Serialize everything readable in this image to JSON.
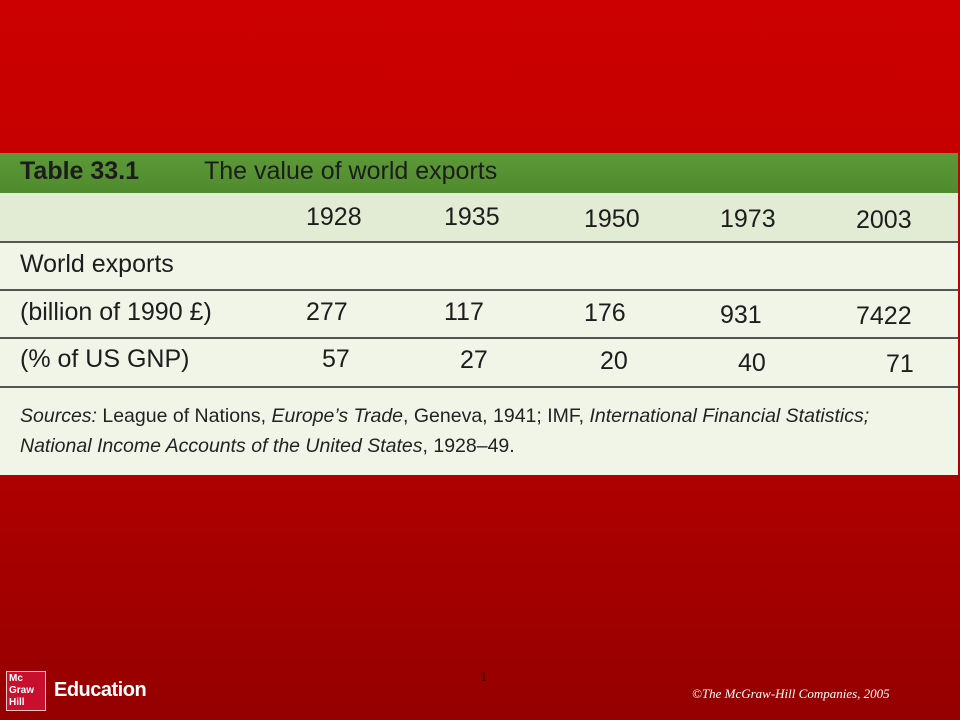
{
  "table": {
    "label": "Table 33.1",
    "title": "The value of world exports",
    "years": [
      "1928",
      "1935",
      "1950",
      "1973",
      "2003"
    ],
    "row_heading": "World exports",
    "rows": [
      {
        "label": "(billion of 1990 £)",
        "values": [
          "277",
          "117",
          "176",
          "931",
          "7422"
        ]
      },
      {
        "label": "(% of US GNP)",
        "values": [
          "57",
          "27",
          "20",
          "40",
          "71"
        ]
      }
    ],
    "source_parts": [
      {
        "text": "Sources:",
        "italic": true
      },
      {
        "text": " League of Nations, ",
        "italic": false
      },
      {
        "text": "Europe’s Trade",
        "italic": true
      },
      {
        "text": ", Geneva, 1941; IMF, ",
        "italic": false
      },
      {
        "text": "International Financial Statistics; National Income Accounts of the United States",
        "italic": true
      },
      {
        "text": ", 1928–49.",
        "italic": false
      }
    ]
  },
  "footer": {
    "page_number": "1",
    "logo_lines": [
      "Mc",
      "Graw",
      "Hill"
    ],
    "logo_text": "Education",
    "copyright": "©The McGraw-Hill Companies, 2005"
  }
}
